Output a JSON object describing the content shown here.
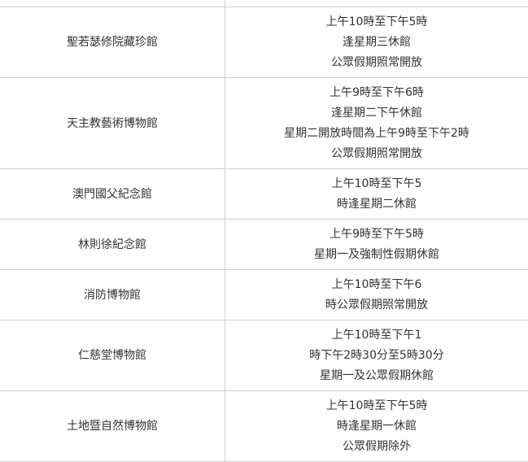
{
  "table": {
    "rows": [
      {
        "name": "聖若瑟修院藏珍館",
        "hours": [
          "上午10時至下午5時",
          "逢星期三休館",
          "公眾假期照常開放"
        ]
      },
      {
        "name": "天主教藝術博物館",
        "hours": [
          "上午9時至下午6時",
          "逢星期二下午休館",
          "星期二開放時間為上午9時至下午2時",
          "公眾假期照常開放"
        ]
      },
      {
        "name": "澳門國父紀念館",
        "hours": [
          "上午10時至下午5",
          "時逢星期二休館"
        ]
      },
      {
        "name": "林則徐紀念館",
        "hours": [
          "上午9時至下午5時",
          "星期一及強制性假期休館"
        ]
      },
      {
        "name": "消防博物館",
        "hours": [
          "上午10時至下午6",
          "時公眾假期照常開放"
        ]
      },
      {
        "name": "仁慈堂博物館",
        "hours": [
          "上午10時至下午1",
          "時下午2時30分至5時30分",
          "星期一及公眾假期休館"
        ]
      },
      {
        "name": "土地暨自然博物館",
        "hours": [
          "上午10時至下午5時",
          "時逢星期一休館",
          "公眾假期除外"
        ]
      }
    ]
  }
}
